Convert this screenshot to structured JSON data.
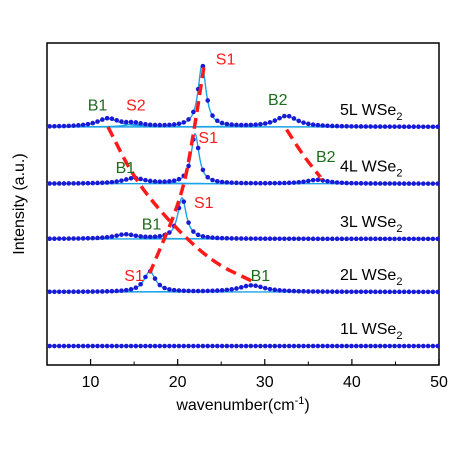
{
  "chart_data": {
    "type": "scatter",
    "title": "",
    "xlabel": "wavenumber(cm",
    "xlabel_sup": "-1",
    "xlabel_end": ")",
    "ylabel": "Intensity (a.u.)",
    "xlim": [
      5,
      50
    ],
    "xticks": [
      10,
      20,
      30,
      40,
      50
    ],
    "grid": false,
    "colors": {
      "points": "#1a1ad6",
      "fit": "#1ba3e6",
      "trend": "#ff1a1a",
      "breathing_label": "#1e6b1e",
      "shear_label": "#ff1a1a"
    },
    "series": [
      {
        "name_main": "1L WSe",
        "name_sub": "2",
        "baseline": 0.0,
        "peaks": []
      },
      {
        "name_main": "2L WSe",
        "name_sub": "2",
        "baseline": 1.0,
        "peaks": [
          {
            "label": "S1",
            "x": 16.8,
            "height": 0.38,
            "width": 0.8
          },
          {
            "label": "B1",
            "x": 28.5,
            "height": 0.12,
            "width": 1.8
          }
        ]
      },
      {
        "name_main": "3L WSe",
        "name_sub": "2",
        "baseline": 1.98,
        "peaks": [
          {
            "label": "B1",
            "x": 14.0,
            "height": 0.08,
            "width": 1.5
          },
          {
            "label": "S1",
            "x": 20.5,
            "height": 0.76,
            "width": 0.6
          }
        ]
      },
      {
        "name_main": "4L WSe",
        "name_sub": "2",
        "baseline": 3.0,
        "peaks": [
          {
            "label": "B1",
            "x": 15.0,
            "height": 0.1,
            "width": 1.5
          },
          {
            "label": "S1",
            "x": 22.0,
            "height": 0.92,
            "width": 0.55
          },
          {
            "label": "B2",
            "x": 36.0,
            "height": 0.07,
            "width": 1.5
          }
        ]
      },
      {
        "name_main": "5L WSe",
        "name_sub": "2",
        "baseline": 4.05,
        "peaks": [
          {
            "label": "B1",
            "x": 12.0,
            "height": 0.15,
            "width": 1.5
          },
          {
            "label": "S2",
            "x": 15.0,
            "height": 0.05,
            "width": 1.2
          },
          {
            "label": "S1",
            "x": 22.8,
            "height": 1.15,
            "width": 0.55
          },
          {
            "label": "B2",
            "x": 32.5,
            "height": 0.2,
            "width": 1.5
          }
        ]
      }
    ],
    "trend_lines": [
      {
        "name": "S1 trend",
        "points": [
          [
            23.0,
            5.15
          ],
          [
            21.8,
            3.9
          ],
          [
            20.5,
            2.75
          ],
          [
            16.8,
            1.35
          ]
        ]
      },
      {
        "name": "B1 trend",
        "points": [
          [
            12.0,
            4.05
          ],
          [
            15.0,
            3.1
          ],
          [
            19.0,
            2.3
          ],
          [
            24.0,
            1.55
          ],
          [
            28.5,
            1.2
          ]
        ]
      },
      {
        "name": "B2 trend",
        "points": [
          [
            32.5,
            4.0
          ],
          [
            34.5,
            3.5
          ],
          [
            36.5,
            3.1
          ]
        ]
      }
    ],
    "annotations": [
      {
        "text": "B1",
        "x": 10.8,
        "y": 4.35,
        "kind": "breathing"
      },
      {
        "text": "S2",
        "x": 15.2,
        "y": 4.35,
        "kind": "shear"
      },
      {
        "text": "S1",
        "x": 25.5,
        "y": 5.2,
        "kind": "shear"
      },
      {
        "text": "B2",
        "x": 31.5,
        "y": 4.45,
        "kind": "breathing"
      },
      {
        "text": "B1",
        "x": 14.0,
        "y": 3.2,
        "kind": "breathing"
      },
      {
        "text": "S1",
        "x": 23.5,
        "y": 3.75,
        "kind": "shear"
      },
      {
        "text": "B2",
        "x": 37.0,
        "y": 3.4,
        "kind": "breathing"
      },
      {
        "text": "B1",
        "x": 17.0,
        "y": 2.15,
        "kind": "breathing"
      },
      {
        "text": "S1",
        "x": 23.0,
        "y": 2.55,
        "kind": "shear"
      },
      {
        "text": "S1",
        "x": 15.0,
        "y": 1.2,
        "kind": "shear"
      },
      {
        "text": "B1",
        "x": 29.5,
        "y": 1.2,
        "kind": "breathing"
      }
    ]
  }
}
